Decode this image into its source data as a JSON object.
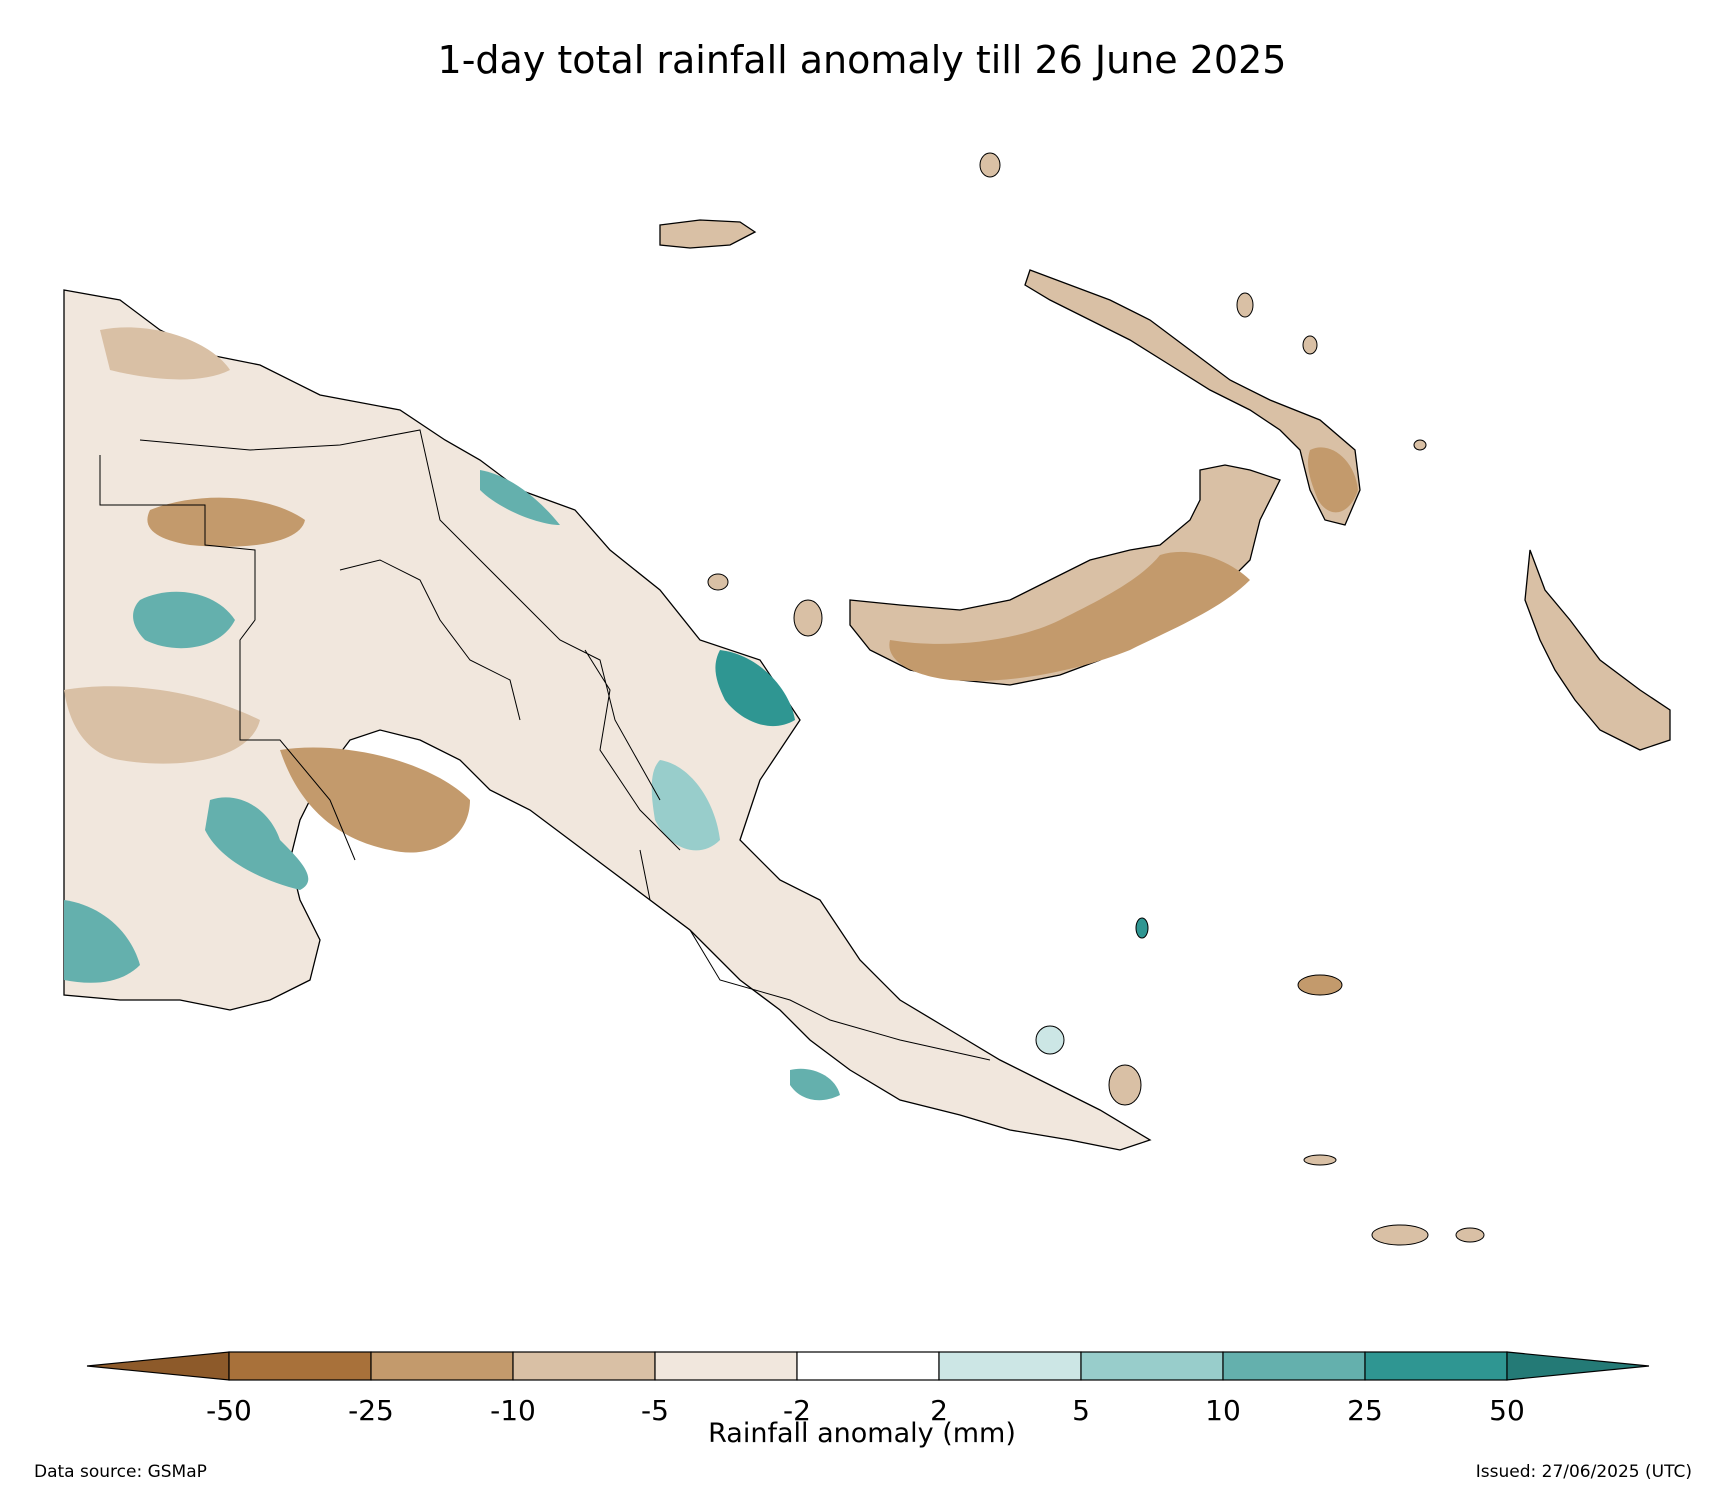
{
  "title": "1-day total rainfall anomaly till 26 June 2025",
  "colorbar": {
    "label": "Rainfall anomaly (mm)",
    "ticks": [
      "-50",
      "-25",
      "-10",
      "-5",
      "-2",
      "2",
      "5",
      "10",
      "25",
      "50"
    ],
    "colors": {
      "below_-50": "#8d5a2a",
      "-50_-25": "#a8713a",
      "-25_-10": "#c39a6c",
      "-10_-5": "#d9c0a5",
      "-5_-2": "#f1e7dd",
      "-2_2": "#ffffff",
      "2_5": "#cce6e5",
      "5_10": "#98cdcb",
      "10_25": "#64b0ad",
      "25_50": "#2f9692",
      "above_50": "#247a76"
    }
  },
  "footer": {
    "source": "Data source: GSMaP",
    "issued": "Issued: 27/06/2025 (UTC)"
  }
}
